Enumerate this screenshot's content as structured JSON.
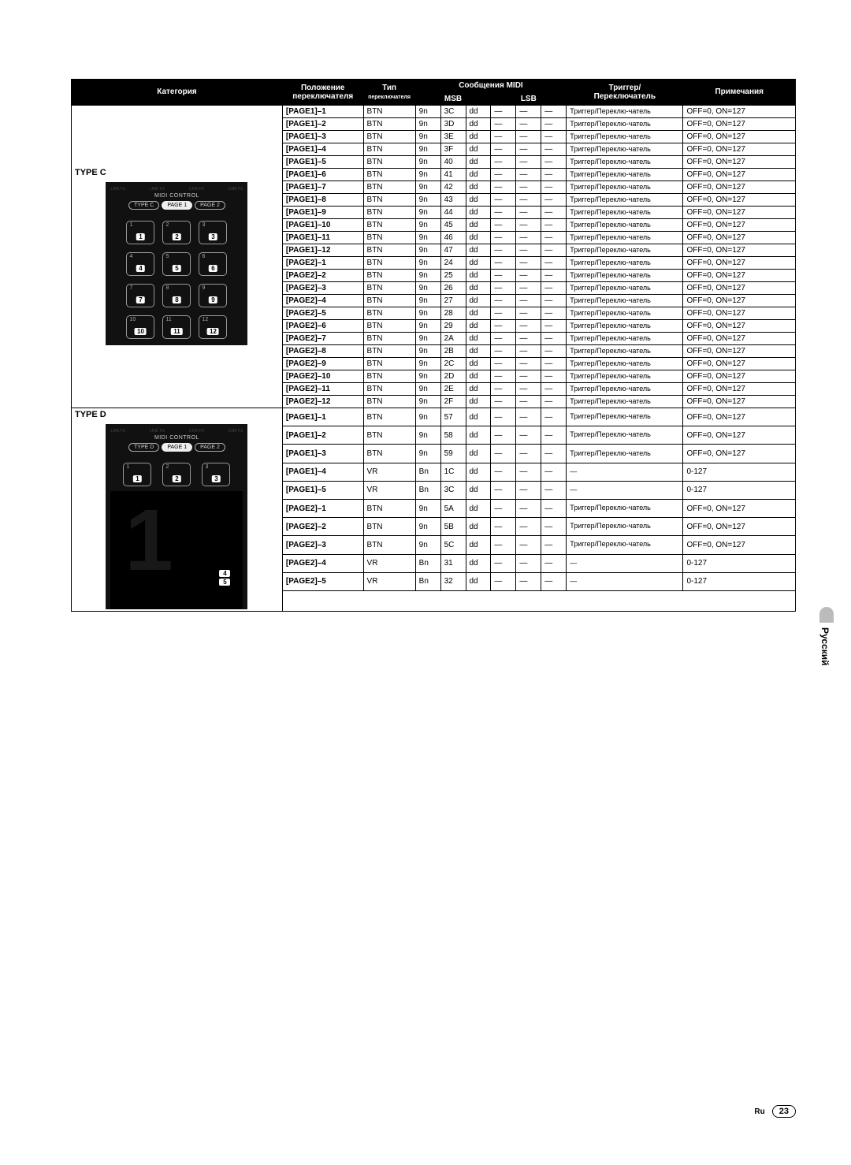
{
  "headers": {
    "category": "Категория",
    "position": "Положение",
    "position_sub": "переключателя",
    "type": "Тип",
    "type_sub": "переключателя",
    "midi": "Сообщения MIDI",
    "msb": "MSB",
    "lsb": "LSB",
    "trigger": "Триггер/",
    "trigger_sub": "Переключатель",
    "notes": "Примечания"
  },
  "trigger_text": "Триггер/Переклю-чатель",
  "notes_btn": "OFF=0, ON=127",
  "notes_vr": "0-127",
  "dash": "—",
  "typeC": {
    "title": "TYPE C",
    "midi_label": "MIDI CONTROL",
    "link": "LINK FS",
    "pills": [
      "TYPE C",
      "PAGE 1",
      "PAGE 2"
    ],
    "pads": [
      "1",
      "2",
      "3",
      "4",
      "5",
      "6",
      "7",
      "8",
      "9",
      "10",
      "11",
      "12"
    ],
    "rows": [
      {
        "pos": "[PAGE1]–1",
        "type": "BTN",
        "m1": "9n",
        "m2": "3C",
        "m3": "dd",
        "trig": true
      },
      {
        "pos": "[PAGE1]–2",
        "type": "BTN",
        "m1": "9n",
        "m2": "3D",
        "m3": "dd",
        "trig": true
      },
      {
        "pos": "[PAGE1]–3",
        "type": "BTN",
        "m1": "9n",
        "m2": "3E",
        "m3": "dd",
        "trig": true
      },
      {
        "pos": "[PAGE1]–4",
        "type": "BTN",
        "m1": "9n",
        "m2": "3F",
        "m3": "dd",
        "trig": true
      },
      {
        "pos": "[PAGE1]–5",
        "type": "BTN",
        "m1": "9n",
        "m2": "40",
        "m3": "dd",
        "trig": true
      },
      {
        "pos": "[PAGE1]–6",
        "type": "BTN",
        "m1": "9n",
        "m2": "41",
        "m3": "dd",
        "trig": true
      },
      {
        "pos": "[PAGE1]–7",
        "type": "BTN",
        "m1": "9n",
        "m2": "42",
        "m3": "dd",
        "trig": true
      },
      {
        "pos": "[PAGE1]–8",
        "type": "BTN",
        "m1": "9n",
        "m2": "43",
        "m3": "dd",
        "trig": true
      },
      {
        "pos": "[PAGE1]–9",
        "type": "BTN",
        "m1": "9n",
        "m2": "44",
        "m3": "dd",
        "trig": true
      },
      {
        "pos": "[PAGE1]–10",
        "type": "BTN",
        "m1": "9n",
        "m2": "45",
        "m3": "dd",
        "trig": true
      },
      {
        "pos": "[PAGE1]–11",
        "type": "BTN",
        "m1": "9n",
        "m2": "46",
        "m3": "dd",
        "trig": true
      },
      {
        "pos": "[PAGE1]–12",
        "type": "BTN",
        "m1": "9n",
        "m2": "47",
        "m3": "dd",
        "trig": true
      },
      {
        "pos": "[PAGE2]–1",
        "type": "BTN",
        "m1": "9n",
        "m2": "24",
        "m3": "dd",
        "trig": true
      },
      {
        "pos": "[PAGE2]–2",
        "type": "BTN",
        "m1": "9n",
        "m2": "25",
        "m3": "dd",
        "trig": true
      },
      {
        "pos": "[PAGE2]–3",
        "type": "BTN",
        "m1": "9n",
        "m2": "26",
        "m3": "dd",
        "trig": true
      },
      {
        "pos": "[PAGE2]–4",
        "type": "BTN",
        "m1": "9n",
        "m2": "27",
        "m3": "dd",
        "trig": true
      },
      {
        "pos": "[PAGE2]–5",
        "type": "BTN",
        "m1": "9n",
        "m2": "28",
        "m3": "dd",
        "trig": true
      },
      {
        "pos": "[PAGE2]–6",
        "type": "BTN",
        "m1": "9n",
        "m2": "29",
        "m3": "dd",
        "trig": true
      },
      {
        "pos": "[PAGE2]–7",
        "type": "BTN",
        "m1": "9n",
        "m2": "2A",
        "m3": "dd",
        "trig": true
      },
      {
        "pos": "[PAGE2]–8",
        "type": "BTN",
        "m1": "9n",
        "m2": "2B",
        "m3": "dd",
        "trig": true
      },
      {
        "pos": "[PAGE2]–9",
        "type": "BTN",
        "m1": "9n",
        "m2": "2C",
        "m3": "dd",
        "trig": true
      },
      {
        "pos": "[PAGE2]–10",
        "type": "BTN",
        "m1": "9n",
        "m2": "2D",
        "m3": "dd",
        "trig": true
      },
      {
        "pos": "[PAGE2]–11",
        "type": "BTN",
        "m1": "9n",
        "m2": "2E",
        "m3": "dd",
        "trig": true
      },
      {
        "pos": "[PAGE2]–12",
        "type": "BTN",
        "m1": "9n",
        "m2": "2F",
        "m3": "dd",
        "trig": true
      }
    ]
  },
  "typeD": {
    "title": "TYPE D",
    "midi_label": "MIDI CONTROL",
    "pills": [
      "TYPE D",
      "PAGE 1",
      "PAGE 2"
    ],
    "pads": [
      "1",
      "2",
      "3"
    ],
    "side": [
      "4",
      "5"
    ],
    "big": "1",
    "rows": [
      {
        "pos": "[PAGE1]–1",
        "type": "BTN",
        "m1": "9n",
        "m2": "57",
        "m3": "dd",
        "trig": true
      },
      {
        "pos": "[PAGE1]–2",
        "type": "BTN",
        "m1": "9n",
        "m2": "58",
        "m3": "dd",
        "trig": true
      },
      {
        "pos": "[PAGE1]–3",
        "type": "BTN",
        "m1": "9n",
        "m2": "59",
        "m3": "dd",
        "trig": true
      },
      {
        "pos": "[PAGE1]–4",
        "type": "VR",
        "m1": "Bn",
        "m2": "1C",
        "m3": "dd",
        "trig": false
      },
      {
        "pos": "[PAGE1]–5",
        "type": "VR",
        "m1": "Bn",
        "m2": "3C",
        "m3": "dd",
        "trig": false
      },
      {
        "pos": "[PAGE2]–1",
        "type": "BTN",
        "m1": "9n",
        "m2": "5A",
        "m3": "dd",
        "trig": true
      },
      {
        "pos": "[PAGE2]–2",
        "type": "BTN",
        "m1": "9n",
        "m2": "5B",
        "m3": "dd",
        "trig": true
      },
      {
        "pos": "[PAGE2]–3",
        "type": "BTN",
        "m1": "9n",
        "m2": "5C",
        "m3": "dd",
        "trig": true
      },
      {
        "pos": "[PAGE2]–4",
        "type": "VR",
        "m1": "Bn",
        "m2": "31",
        "m3": "dd",
        "trig": false
      },
      {
        "pos": "[PAGE2]–5",
        "type": "VR",
        "m1": "Bn",
        "m2": "32",
        "m3": "dd",
        "trig": false
      }
    ]
  },
  "side_label": "Русский",
  "footer": {
    "lang": "Ru",
    "page": "23"
  }
}
